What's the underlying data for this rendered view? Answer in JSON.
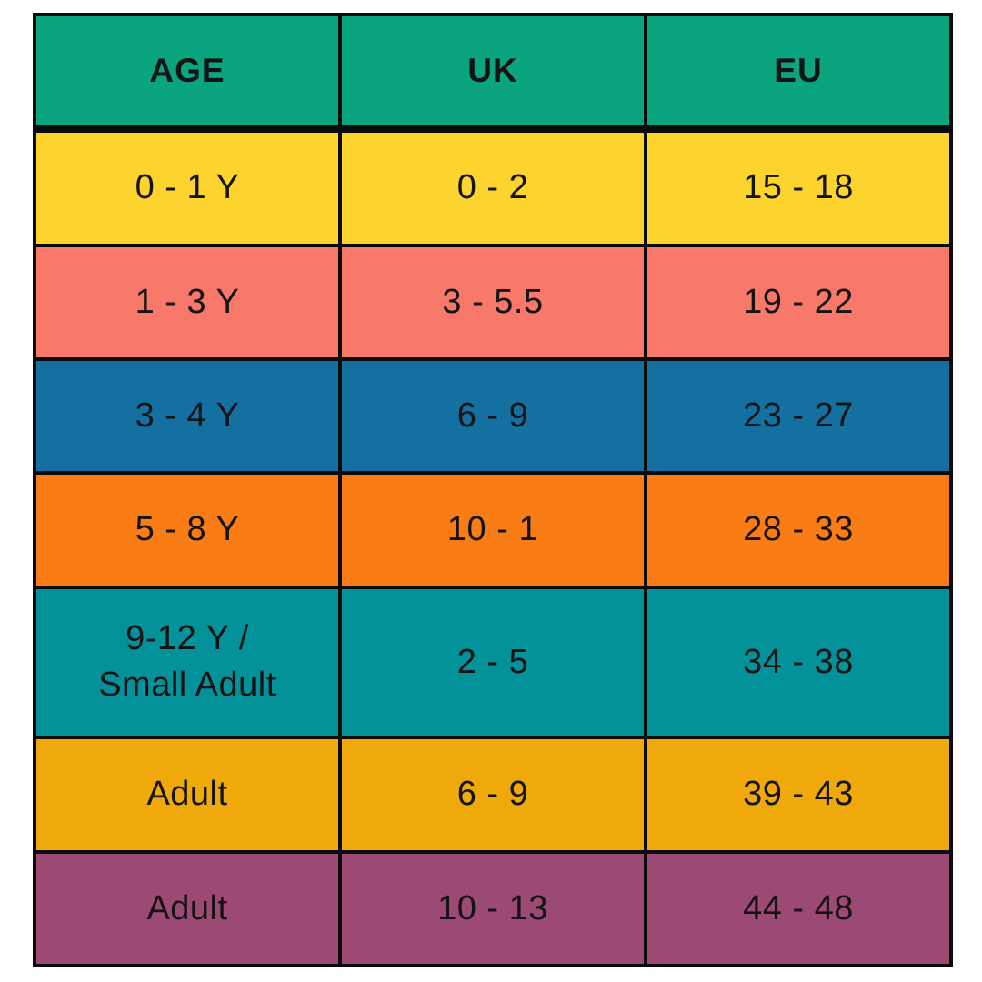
{
  "chart_data": {
    "type": "table",
    "columns": [
      "AGE",
      "UK",
      "EU"
    ],
    "rows": [
      [
        "0 - 1 Y",
        "0 - 2",
        "15 - 18"
      ],
      [
        "1 - 3 Y",
        "3 - 5.5",
        "19 - 22"
      ],
      [
        "3 - 4 Y",
        "6 - 9",
        "23 - 27"
      ],
      [
        "5 - 8 Y",
        "10 - 1",
        "28 - 33"
      ],
      [
        "9-12 Y / Small Adult",
        "2 - 5",
        "34 - 38"
      ],
      [
        "Adult",
        "6 - 9",
        "39 - 43"
      ],
      [
        "Adult",
        "10 - 13",
        "44 - 48"
      ]
    ],
    "legend": "none",
    "grid": "black cell borders"
  },
  "table": {
    "header": {
      "age": "AGE",
      "uk": "UK",
      "eu": "EU"
    },
    "rows": [
      {
        "age": "0 - 1 Y",
        "uk": "0 - 2",
        "eu": "15 - 18",
        "color": "#FDD32E"
      },
      {
        "age": "1 - 3 Y",
        "uk": "3 - 5.5",
        "eu": "19 - 22",
        "color": "#F8786A"
      },
      {
        "age": "3 - 4 Y",
        "uk": "6 - 9",
        "eu": "23 - 27",
        "color": "#1470A1"
      },
      {
        "age": "5 - 8 Y",
        "uk": "10 - 1",
        "eu": "28 - 33",
        "color": "#F97D14"
      },
      {
        "age": "9-12 Y /\nSmall Adult",
        "uk": "2 - 5",
        "eu": "34 - 38",
        "color": "#039299"
      },
      {
        "age": "Adult",
        "uk": "6 - 9",
        "eu": "39 - 43",
        "color": "#EFA90A"
      },
      {
        "age": "Adult",
        "uk": "10 - 13",
        "eu": "44 - 48",
        "color": "#9C4A73"
      }
    ],
    "colors": {
      "header_bg": "#0AA57E",
      "border": "#0B0B0B",
      "text": "#141414",
      "page_bg": "#FFFFFF"
    }
  }
}
